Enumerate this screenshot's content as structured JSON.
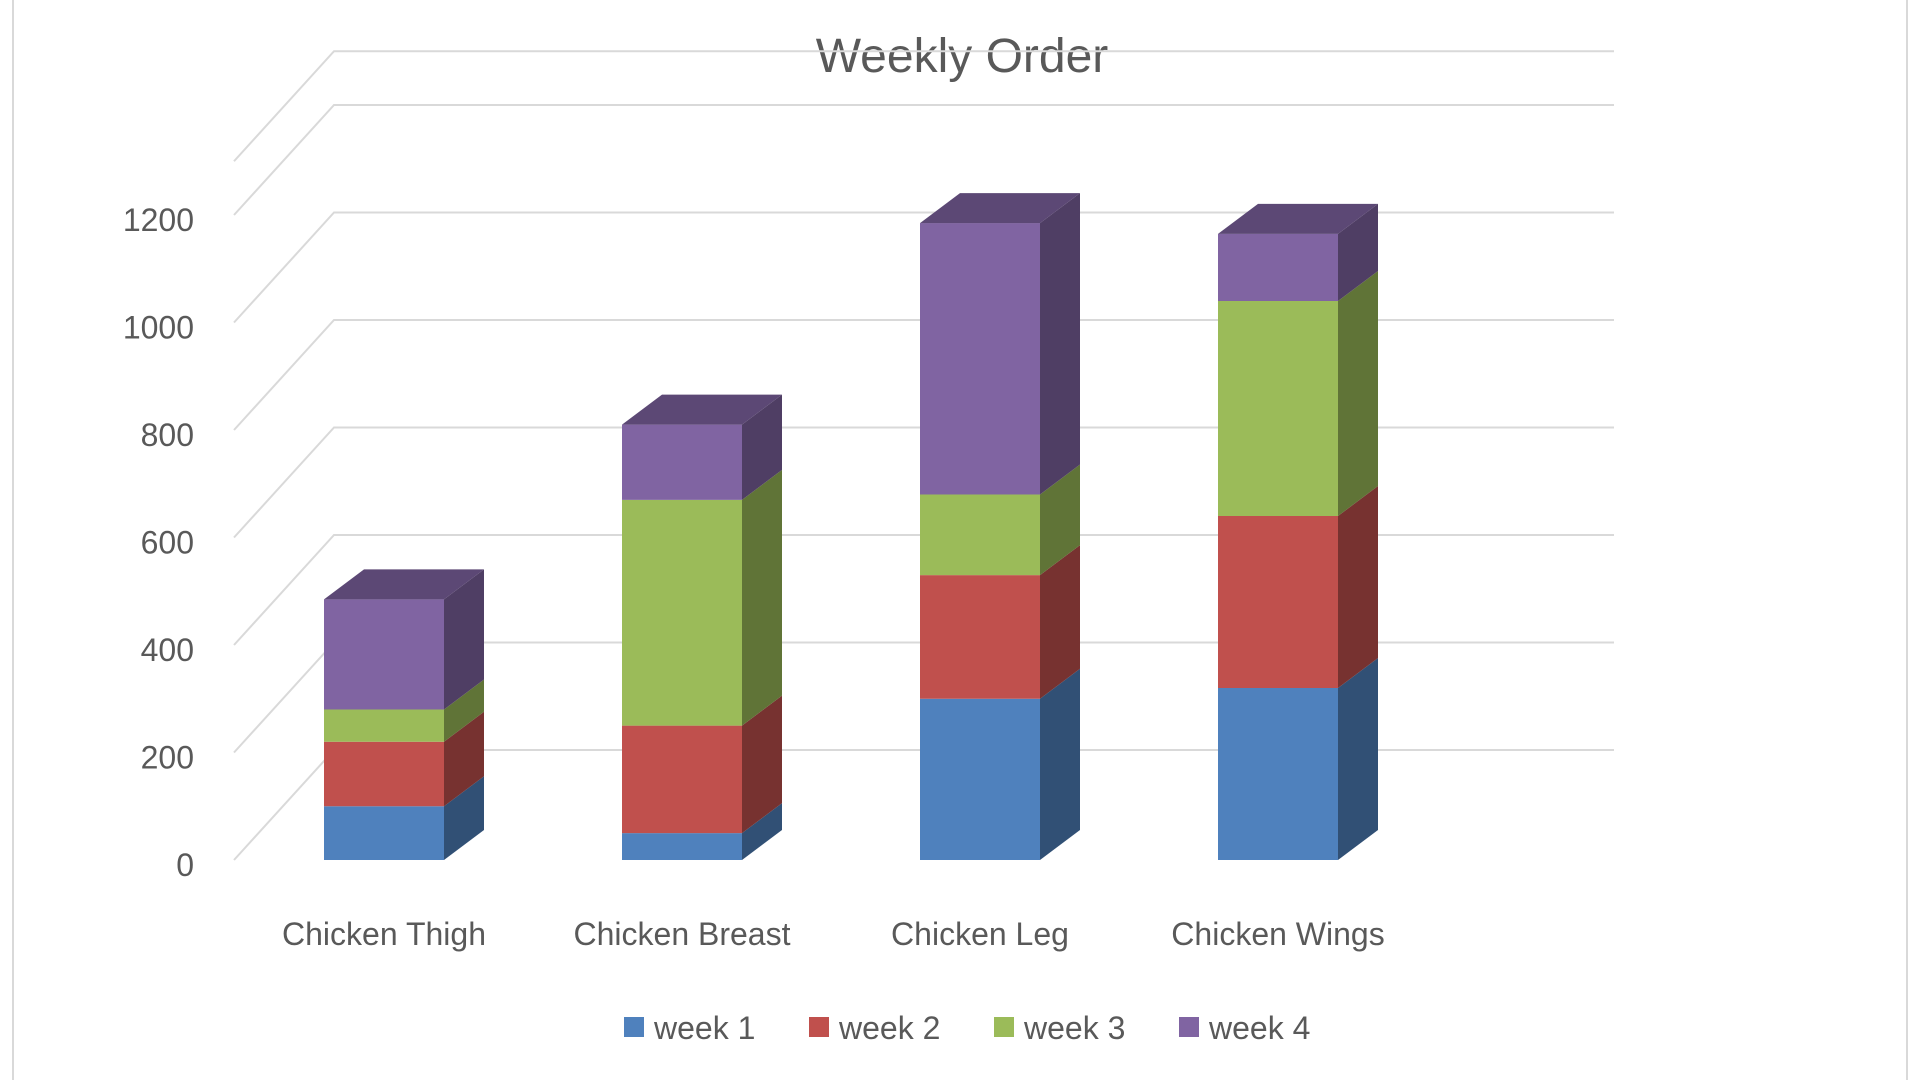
{
  "chart_data": {
    "type": "bar",
    "stacked": true,
    "three_d": true,
    "title": "Weekly Order",
    "xlabel": "",
    "ylabel": "",
    "categories": [
      "Chicken Thigh",
      "Chicken Breast",
      "Chicken Leg",
      "Chicken Wings"
    ],
    "series": [
      {
        "name": "week 1",
        "color": "#4f81bd",
        "values": [
          100,
          50,
          300,
          320
        ]
      },
      {
        "name": "week 2",
        "color": "#c0504d",
        "values": [
          120,
          200,
          230,
          320
        ]
      },
      {
        "name": "week 3",
        "color": "#9bbb59",
        "values": [
          60,
          420,
          150,
          400
        ]
      },
      {
        "name": "week 4",
        "color": "#8064a2",
        "values": [
          205,
          140,
          505,
          125
        ]
      }
    ],
    "yticks": [
      "0",
      "200",
      "400",
      "600",
      "800",
      "1000",
      "1200"
    ],
    "ylim": [
      0,
      1300
    ],
    "grid": true,
    "legend": "bottom"
  }
}
